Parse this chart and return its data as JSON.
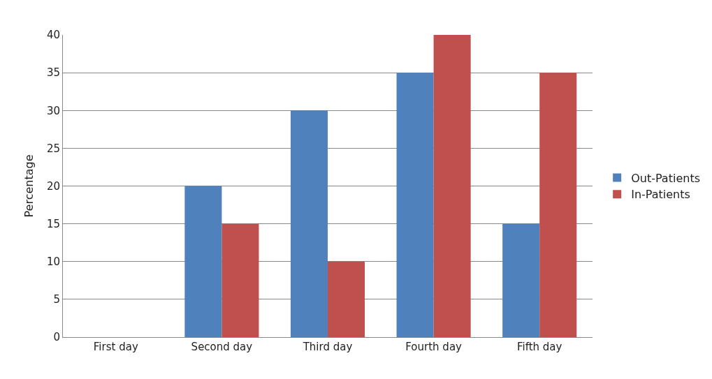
{
  "chart_data": {
    "type": "bar",
    "ylabel": "Percentage",
    "categories": [
      "First day",
      "Second day",
      "Third day",
      "Fourth day",
      "Fifth day"
    ],
    "series": [
      {
        "name": "Out-Patients",
        "color": "#4f81bd",
        "values": [
          0,
          20,
          30,
          35,
          15
        ]
      },
      {
        "name": "In-Patients",
        "color": "#c0504d",
        "values": [
          0,
          15,
          10,
          40,
          35
        ]
      }
    ],
    "ylim": [
      0,
      40
    ],
    "yticks": [
      0,
      5,
      10,
      15,
      20,
      25,
      30,
      35,
      40
    ],
    "grid": "y",
    "legend": "right"
  }
}
